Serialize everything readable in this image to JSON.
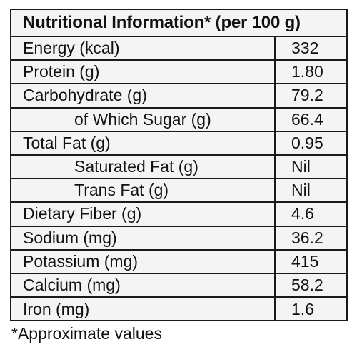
{
  "title": "Nutritional Information* (per 100 g)",
  "rows": [
    {
      "label": "Energy (kcal)",
      "value": "332",
      "indent": false
    },
    {
      "label": "Protein (g)",
      "value": "1.80",
      "indent": false
    },
    {
      "label": "Carbohydrate (g)",
      "value": "79.2",
      "indent": false
    },
    {
      "label": "of Which Sugar (g)",
      "value": "66.4",
      "indent": true
    },
    {
      "label": "Total Fat (g)",
      "value": "0.95",
      "indent": false
    },
    {
      "label": "Saturated Fat (g)",
      "value": "Nil",
      "indent": true
    },
    {
      "label": "Trans Fat (g)",
      "value": "Nil",
      "indent": true
    },
    {
      "label": "Dietary Fiber (g)",
      "value": "4.6",
      "indent": false
    },
    {
      "label": "Sodium (mg)",
      "value": "36.2",
      "indent": false
    },
    {
      "label": "Potassium (mg)",
      "value": "415",
      "indent": false
    },
    {
      "label": "Calcium (mg)",
      "value": "58.2",
      "indent": false
    },
    {
      "label": "Iron (mg)",
      "value": "1.6",
      "indent": false
    }
  ],
  "footnote": "*Approximate values"
}
